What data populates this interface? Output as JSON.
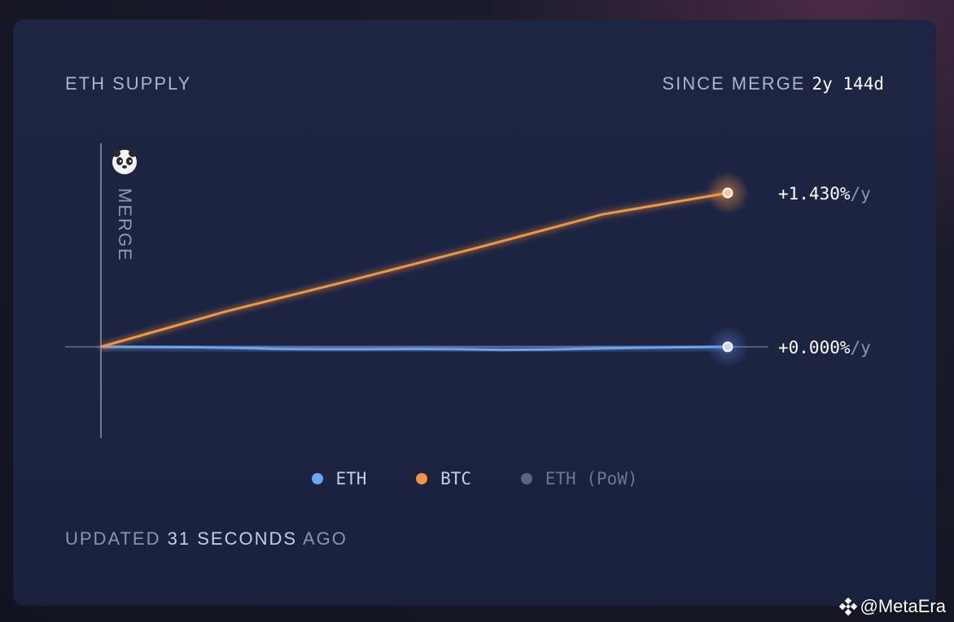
{
  "header": {
    "title": "ETH SUPPLY",
    "since_label": "SINCE MERGE",
    "since_value": "2y 144d"
  },
  "chart_data": {
    "type": "line",
    "annotation": "MERGE",
    "x_marker": "merge",
    "y_baseline": 0,
    "series": [
      {
        "name": "ETH",
        "color": "#6aa5f0",
        "end_label_value": "+0.000%",
        "end_label_unit": "/y",
        "values": [
          0,
          -0.002,
          -0.004,
          -0.009,
          -0.02,
          -0.022,
          -0.022,
          -0.02,
          -0.022,
          -0.028,
          -0.024,
          -0.016,
          -0.008,
          -0.004,
          0
        ]
      },
      {
        "name": "BTC",
        "color": "#f2953e",
        "end_label_value": "+1.430%",
        "end_label_unit": "/y",
        "values": [
          0,
          0.33,
          0.62,
          0.92,
          1.23,
          1.43
        ]
      },
      {
        "name": "ETH (PoW)",
        "color": "#5d647c",
        "values": []
      }
    ]
  },
  "footer": {
    "updated_prefix": "UPDATED",
    "updated_number": "31",
    "updated_unit": "SECONDS",
    "updated_suffix": "AGO"
  },
  "watermark": "@MetaEra"
}
